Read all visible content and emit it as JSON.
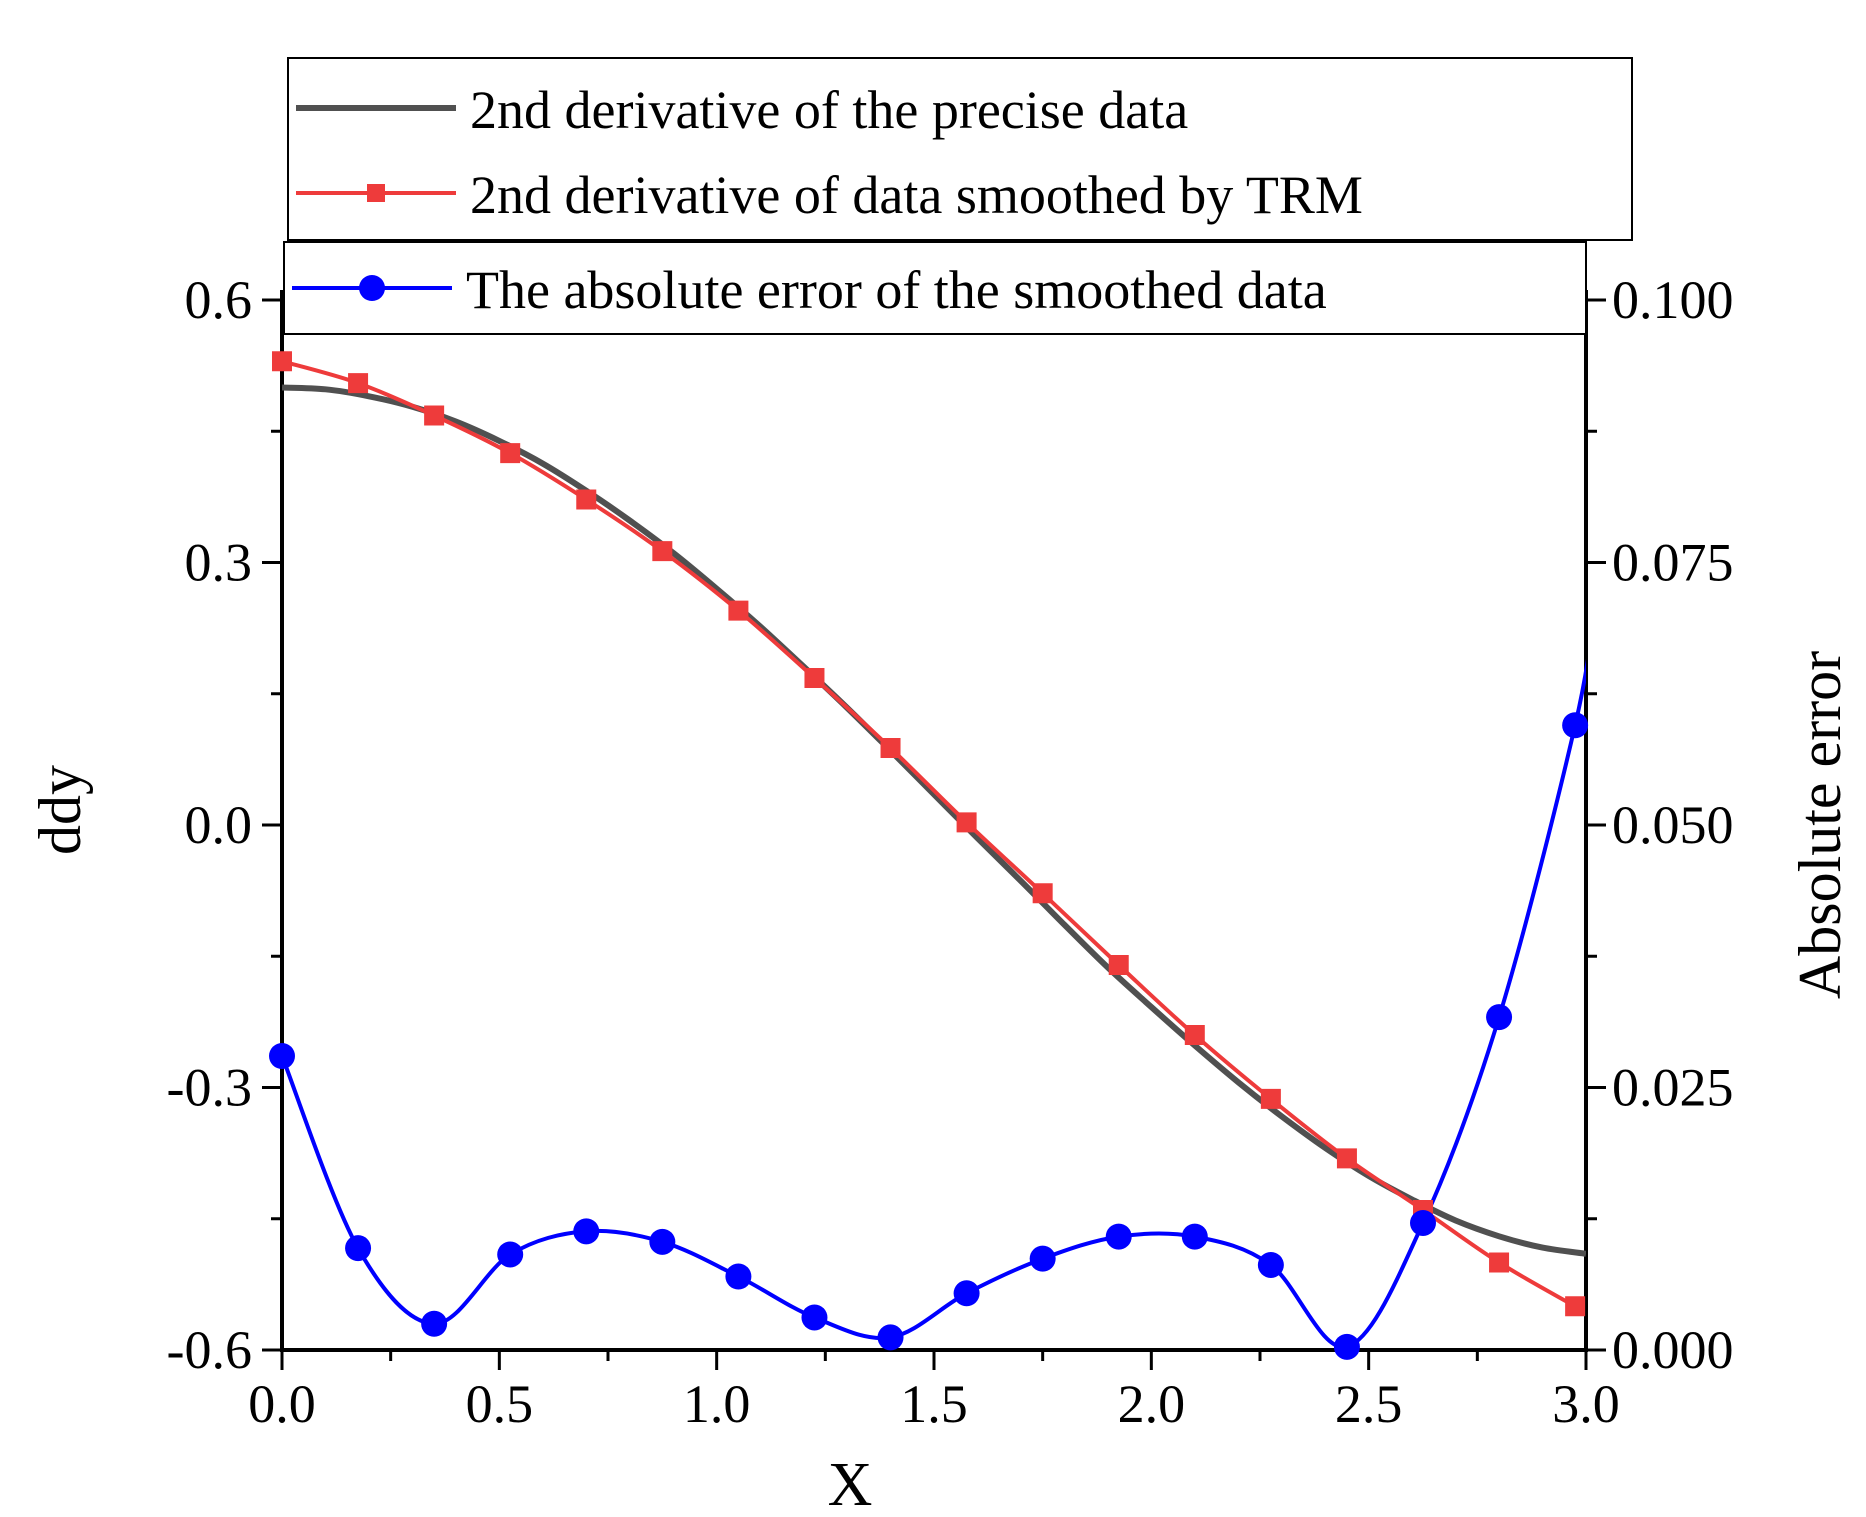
{
  "chart_data": {
    "type": "line",
    "xlabel": "X",
    "ylabel": "ddy",
    "y2label": "Absolute error",
    "xlim": [
      0.0,
      3.0
    ],
    "ylim": [
      -0.6,
      0.6
    ],
    "y2lim": [
      0.0,
      0.1
    ],
    "x_ticks": [
      "0.0",
      "0.5",
      "1.0",
      "1.5",
      "2.0",
      "2.5",
      "3.0"
    ],
    "y_ticks": [
      "-0.6",
      "-0.3",
      "0.0",
      "0.3",
      "0.6"
    ],
    "y2_ticks": [
      "0.000",
      "0.025",
      "0.050",
      "0.075",
      "0.100"
    ],
    "legend_placement": "top",
    "series": [
      {
        "name": "2nd derivative of the precise data",
        "axis": "left",
        "color": "#505050",
        "marker": "none",
        "x": [
          0.0,
          0.1,
          0.2,
          0.3,
          0.4,
          0.5,
          0.6,
          0.7,
          0.8,
          0.9,
          1.0,
          1.1,
          1.2,
          1.3,
          1.4,
          1.5,
          1.6,
          1.7,
          1.8,
          1.9,
          2.0,
          2.1,
          2.2,
          2.3,
          2.4,
          2.5,
          2.6,
          2.7,
          2.8,
          2.9,
          3.0
        ],
        "values": [
          0.5,
          0.498,
          0.49,
          0.478,
          0.461,
          0.439,
          0.413,
          0.382,
          0.348,
          0.311,
          0.27,
          0.227,
          0.181,
          0.134,
          0.085,
          0.035,
          -0.015,
          -0.064,
          -0.114,
          -0.163,
          -0.208,
          -0.252,
          -0.294,
          -0.333,
          -0.369,
          -0.401,
          -0.428,
          -0.452,
          -0.47,
          -0.483,
          -0.49
        ]
      },
      {
        "name": "2nd derivative of data smoothed by TRM",
        "axis": "left",
        "color": "#ee3b3b",
        "marker": "square",
        "x": [
          0.0,
          0.175,
          0.35,
          0.525,
          0.7,
          0.875,
          1.05,
          1.225,
          1.4,
          1.575,
          1.75,
          1.925,
          2.1,
          2.275,
          2.45,
          2.625,
          2.8,
          2.975
        ],
        "values": [
          0.53,
          0.505,
          0.468,
          0.425,
          0.372,
          0.313,
          0.245,
          0.168,
          0.088,
          0.003,
          -0.078,
          -0.16,
          -0.24,
          -0.313,
          -0.381,
          -0.44,
          -0.5,
          -0.55
        ]
      },
      {
        "name": "The absolute error of the smoothed data",
        "axis": "right",
        "color": "#0000ff",
        "marker": "circle",
        "x": [
          0.0,
          0.175,
          0.35,
          0.525,
          0.7,
          0.875,
          1.05,
          1.225,
          1.4,
          1.575,
          1.75,
          1.925,
          2.1,
          2.275,
          2.45,
          2.625,
          2.8,
          2.975
        ],
        "values": [
          0.028,
          0.0097,
          0.0025,
          0.0091,
          0.0113,
          0.0103,
          0.007,
          0.0031,
          0.0012,
          0.0054,
          0.0087,
          0.0108,
          0.0108,
          0.0081,
          0.0003,
          0.0121,
          0.0317,
          0.0595
        ]
      }
    ]
  }
}
